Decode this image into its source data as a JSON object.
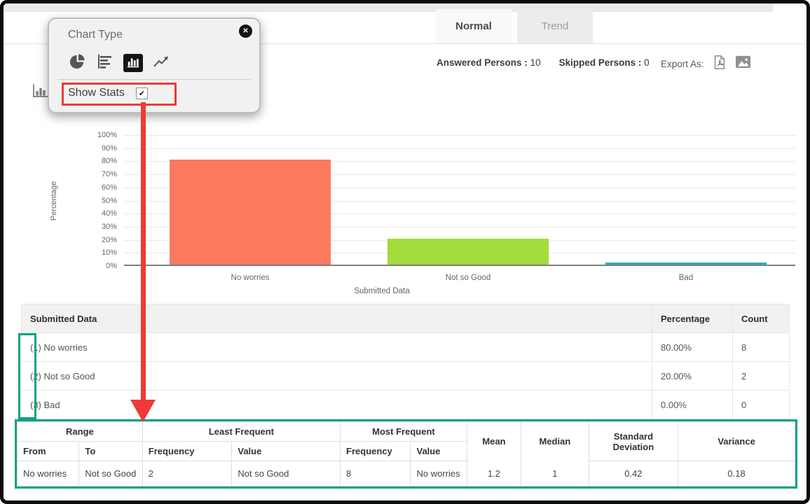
{
  "annotation_colors": {
    "highlight_red": "#ee3a34",
    "highlight_teal": "#0aa383"
  },
  "popup": {
    "title": "Chart Type",
    "close_label": "✕",
    "show_stats_label": "Show Stats",
    "show_stats_checkmark": "✔",
    "selected_chart_type": "vertical-bar-chart"
  },
  "tabs": {
    "normal": "Normal",
    "trend": "Trend",
    "active": "Normal"
  },
  "summary": {
    "answered_label": "Answered Persons :",
    "answered_value": "10",
    "skipped_label": "Skipped Persons :",
    "skipped_value": "0",
    "export_label": "Export As:"
  },
  "chart_data": {
    "type": "bar",
    "categories": [
      "No worries",
      "Not so Good",
      "Bad"
    ],
    "values": [
      80,
      20,
      0
    ],
    "colors": [
      "#fb7a5f",
      "#a3dc3c",
      "#30a8cc"
    ],
    "xlabel": "Submitted Data",
    "ylabel": "Percentage",
    "ylim": [
      0,
      100
    ],
    "ytick_labels": [
      "100%",
      "90%",
      "80%",
      "70%",
      "60%",
      "50%",
      "40%",
      "30%",
      "20%",
      "10%",
      "0%"
    ],
    "grid": true,
    "legend": "none"
  },
  "data_table": {
    "headers": {
      "submitted_data": "Submitted Data",
      "percentage": "Percentage",
      "count": "Count"
    },
    "rows": [
      {
        "index": "(1)",
        "label": "No worries",
        "percentage": "80.00%",
        "count": "8"
      },
      {
        "index": "(2)",
        "label": "Not so Good",
        "percentage": "20.00%",
        "count": "2"
      },
      {
        "index": "(3)",
        "label": "Bad",
        "percentage": "0.00%",
        "count": "0"
      }
    ]
  },
  "stats_table": {
    "group_headers": [
      "Range",
      "Least Frequent",
      "Most Frequent"
    ],
    "sub_headers": [
      "From",
      "To",
      "Frequency",
      "Value",
      "Frequency",
      "Value"
    ],
    "single_headers": [
      "Mean",
      "Median",
      "Standard Deviation",
      "Variance"
    ],
    "row": {
      "from": "No worries",
      "to": "Not so Good",
      "least_frequent_frequency": "2",
      "least_frequent_value": "Not so Good",
      "most_frequent_frequency": "8",
      "most_frequent_value": "No worries",
      "mean": "1.2",
      "median": "1",
      "standard_deviation": "0.42",
      "variance": "0.18"
    }
  }
}
